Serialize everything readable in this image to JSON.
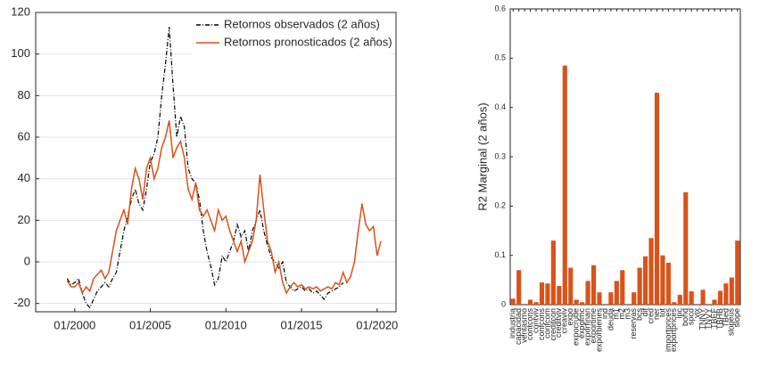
{
  "chart_data": [
    {
      "type": "line",
      "x": [
        "1999-07",
        "1999-10",
        "2000-01",
        "2000-04",
        "2000-07",
        "2000-10",
        "2001-01",
        "2001-04",
        "2001-07",
        "2001-10",
        "2002-01",
        "2002-04",
        "2002-07",
        "2002-10",
        "2003-01",
        "2003-04",
        "2003-07",
        "2003-10",
        "2004-01",
        "2004-04",
        "2004-07",
        "2004-10",
        "2005-01",
        "2005-04",
        "2005-07",
        "2005-10",
        "2006-01",
        "2006-04",
        "2006-07",
        "2006-10",
        "2007-01",
        "2007-04",
        "2007-07",
        "2007-10",
        "2008-01",
        "2008-04",
        "2008-07",
        "2008-10",
        "2009-01",
        "2009-04",
        "2009-07",
        "2009-10",
        "2010-01",
        "2010-04",
        "2010-07",
        "2010-10",
        "2011-01",
        "2011-04",
        "2011-07",
        "2011-10",
        "2012-01",
        "2012-04",
        "2012-07",
        "2012-10",
        "2013-01",
        "2013-04",
        "2013-07",
        "2013-10",
        "2014-01",
        "2014-04",
        "2014-07",
        "2014-10",
        "2015-01",
        "2015-04",
        "2015-07",
        "2015-10",
        "2016-01",
        "2016-04",
        "2016-07",
        "2016-10",
        "2017-01",
        "2017-04",
        "2017-07",
        "2017-10",
        "2018-01",
        "2018-04",
        "2018-07",
        "2018-10",
        "2019-01",
        "2019-04",
        "2019-07",
        "2019-10",
        "2020-01",
        "2020-04"
      ],
      "series": [
        {
          "name": "Retornos observados (2 años)",
          "color": "#000000",
          "linestyle": "dashdot",
          "values": [
            -8,
            -11,
            -10,
            -8,
            -15,
            -20,
            -22,
            -18,
            -14,
            -12,
            -10,
            -12,
            -8,
            -5,
            5,
            15,
            22,
            30,
            35,
            28,
            25,
            35,
            48,
            52,
            60,
            80,
            95,
            113,
            85,
            60,
            70,
            65,
            45,
            40,
            38,
            30,
            15,
            5,
            -2,
            -11,
            -8,
            3,
            0,
            5,
            10,
            18,
            12,
            15,
            5,
            15,
            20,
            25,
            15,
            8,
            2,
            0,
            -3,
            0,
            -10,
            -12,
            -14,
            -13,
            -12,
            -14,
            -13,
            -15,
            -14,
            -16,
            -18,
            -15,
            -14,
            -13,
            -12,
            -10,
            null,
            null,
            null,
            null,
            null,
            null,
            null,
            null,
            null,
            null
          ]
        },
        {
          "name": "Retornos pronosticados (2 años)",
          "color": "#d95319",
          "linestyle": "solid",
          "values": [
            -9,
            -12,
            -12,
            -10,
            -15,
            -12,
            -14,
            -8,
            -6,
            -4,
            -8,
            -5,
            5,
            15,
            20,
            25,
            18,
            35,
            45,
            40,
            30,
            45,
            50,
            40,
            45,
            55,
            60,
            68,
            50,
            55,
            58,
            50,
            35,
            30,
            38,
            25,
            22,
            25,
            20,
            15,
            25,
            20,
            22,
            15,
            10,
            5,
            10,
            0,
            5,
            10,
            20,
            42,
            25,
            10,
            5,
            -5,
            0,
            -10,
            -15,
            -12,
            -10,
            -12,
            -11,
            -13,
            -12,
            -13,
            -12,
            -14,
            -13,
            -12,
            -13,
            -10,
            -11,
            -5,
            -10,
            -7,
            0,
            15,
            28,
            18,
            15,
            17,
            3,
            10
          ]
        }
      ],
      "xlim": [
        "1997-06",
        "2021-04"
      ],
      "xticks": [
        {
          "value": "2000-01",
          "label": "01/2000"
        },
        {
          "value": "2005-01",
          "label": "01/2005"
        },
        {
          "value": "2010-01",
          "label": "01/2010"
        },
        {
          "value": "2015-01",
          "label": "01/2015"
        },
        {
          "value": "2020-01",
          "label": "01/2020"
        }
      ],
      "ylim": [
        -24,
        120
      ],
      "yticks": [
        -20,
        0,
        20,
        40,
        60,
        80,
        100,
        120
      ],
      "grid": true,
      "legend": "upper right"
    },
    {
      "type": "bar",
      "ylabel": "R2 Marginal (2 años)",
      "categories": [
        "industria",
        "capacidad",
        "ventasmo",
        "contcons",
        "contviv",
        "confcons",
        "confcom",
        "creditcon",
        "creditviv",
        "creaviv",
        "expo",
        "expocrude",
        "expofmc",
        "exporfinan",
        "exportime",
        "exporbienes",
        "ind",
        "deuda",
        "m1",
        "m2",
        "m3",
        "reservas",
        "bcs",
        "dif",
        "cred",
        "ner",
        "tot",
        "importprices",
        "exportprices",
        "ipc",
        "bond",
        "spcd",
        "vix",
        "TNNY",
        "TNVY",
        "TBEF",
        "TBHB",
        "TBed",
        "slopeus",
        "slope"
      ],
      "values": [
        0.012,
        0.07,
        0,
        0.01,
        0.005,
        0.045,
        0.043,
        0.13,
        0.038,
        0.485,
        0.075,
        0.01,
        0.005,
        0.048,
        0.08,
        0.025,
        0,
        0.025,
        0.048,
        0.07,
        0,
        0.025,
        0.075,
        0.098,
        0.135,
        0.43,
        0.1,
        0.085,
        0.005,
        0.02,
        0.228,
        0.027,
        0,
        0.03,
        0,
        0.01,
        0.028,
        0.043,
        0.055,
        0.13
      ],
      "color": "#d95319",
      "ylim": [
        0,
        0.6
      ],
      "yticks": [
        0,
        0.1,
        0.2,
        0.3,
        0.4,
        0.5,
        0.6
      ]
    }
  ]
}
